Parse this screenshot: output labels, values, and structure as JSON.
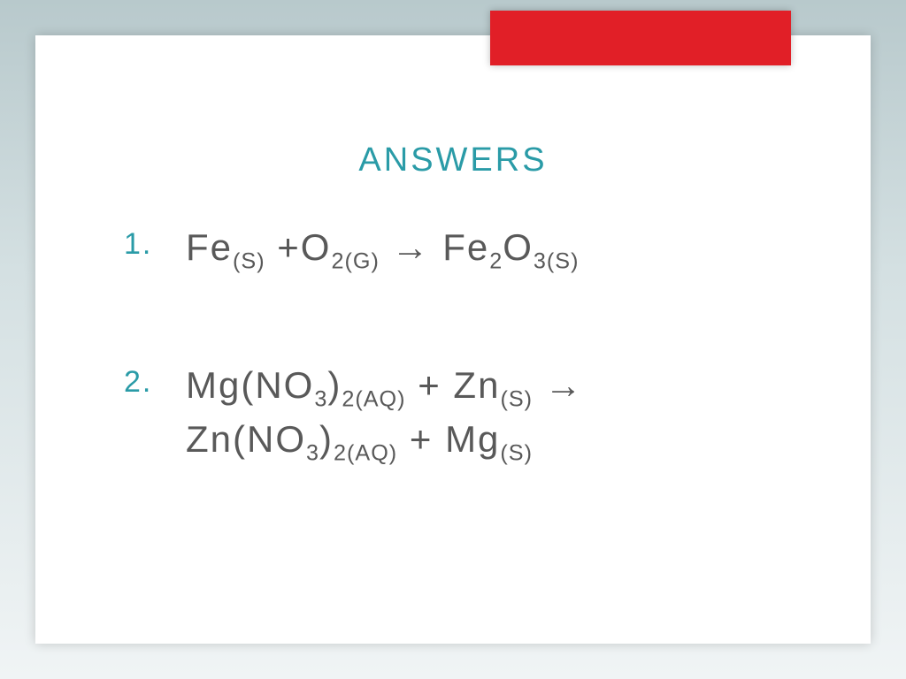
{
  "slide": {
    "title": "ANSWERS",
    "title_color": "#2a9ba7",
    "body_color": "#595959",
    "accent_color": "#e11f27",
    "background_gradient": [
      "#b8c9cc",
      "#d4e0e2",
      "#f0f4f5"
    ],
    "title_fontsize": 38,
    "body_fontsize": 42,
    "letter_spacing": 3,
    "items": [
      {
        "number": "1.",
        "parts": {
          "r1_prefix": "Fe",
          "r1_sub": "(S)",
          "plus1": " +",
          "r2_prefix": "O",
          "r2_sub": "2(G)",
          "arrow": " → ",
          "p1_prefix": "Fe",
          "p1_sub1": "2",
          "p1_mid": "O",
          "p1_sub2": "3(S)"
        }
      },
      {
        "number": "2.",
        "parts": {
          "a_prefix": "Mg(NO",
          "a_sub1": "3",
          "a_mid": ")",
          "a_sub2": "2(AQ)",
          "plus1": " + Zn",
          "a_sub3": "(S)",
          "arrow": " →",
          "b_prefix": "Zn(NO",
          "b_sub1": "3",
          "b_mid": ")",
          "b_sub2": "2(AQ)",
          "plus2": " + Mg",
          "b_sub3": "(S)"
        }
      }
    ]
  }
}
